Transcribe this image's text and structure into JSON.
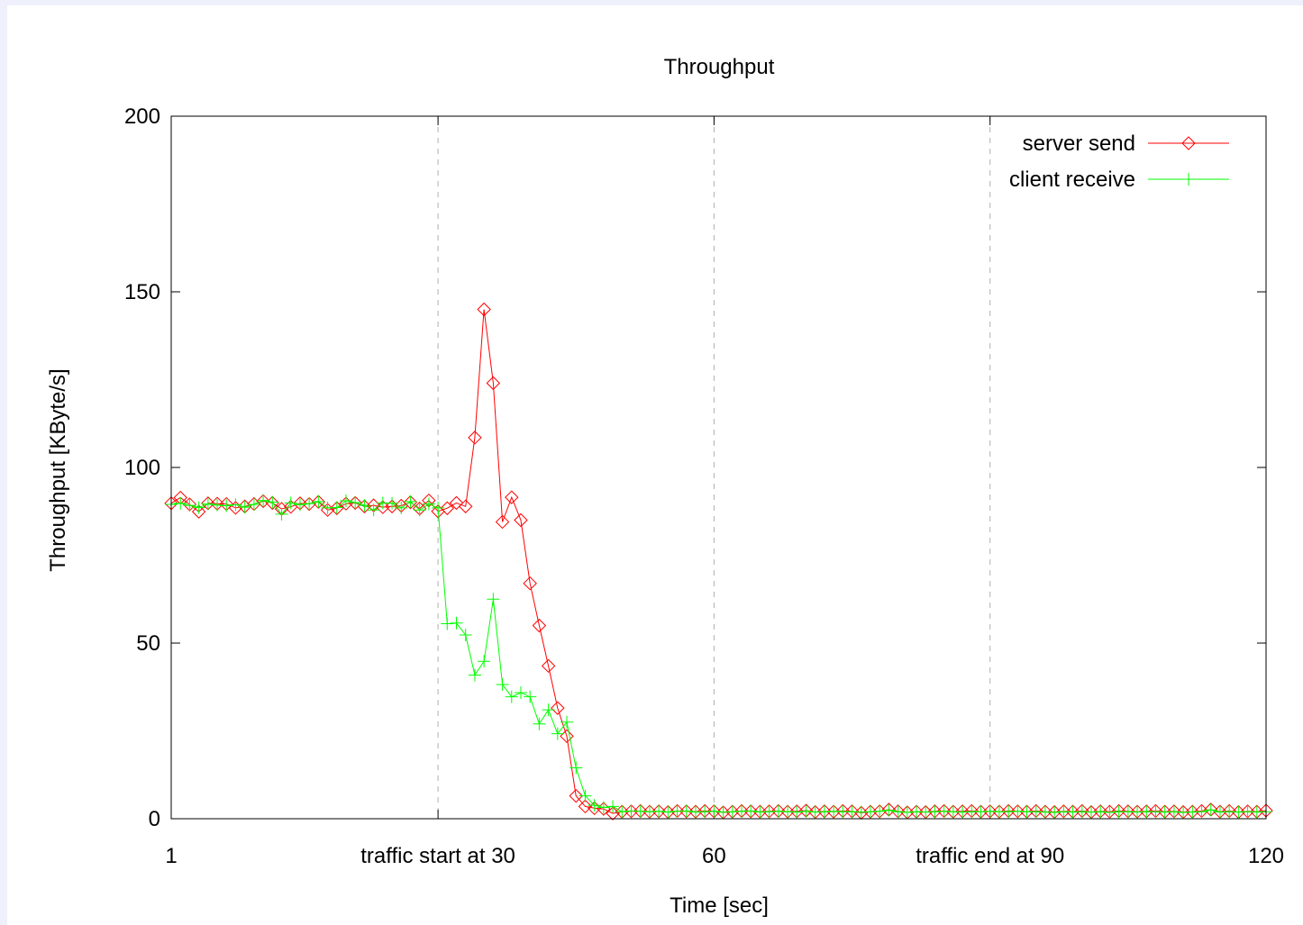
{
  "chart_data": {
    "type": "line",
    "title": "Throughput",
    "xlabel": "Time [sec]",
    "ylabel": "Throughput [KByte/s]",
    "xlim": [
      1,
      120
    ],
    "ylim": [
      0,
      200
    ],
    "x_ticks": [
      {
        "value": 1,
        "label": "1"
      },
      {
        "value": 30,
        "label": "traffic start at 30"
      },
      {
        "value": 60,
        "label": "60"
      },
      {
        "value": 90,
        "label": "traffic end at 90"
      },
      {
        "value": 120,
        "label": "120"
      }
    ],
    "y_ticks": [
      0,
      50,
      100,
      150,
      200
    ],
    "vertical_gridlines_at": [
      30,
      60,
      90
    ],
    "legend_position": "top-right",
    "series": [
      {
        "name": "server send",
        "color": "#ff0000",
        "marker": "diamond",
        "x_start": 1,
        "x_step": 1,
        "values": [
          89.8,
          91.4,
          89.5,
          87.4,
          89.8,
          89.7,
          89.6,
          88.5,
          88.9,
          89.6,
          90.4,
          89.9,
          88.2,
          88.8,
          89.8,
          89.6,
          90.2,
          87.9,
          88.4,
          89.7,
          89.9,
          88.9,
          89.2,
          88.7,
          88.9,
          89.1,
          90.1,
          88.3,
          90.6,
          87.5,
          88.4,
          89.9,
          88.9,
          108.5,
          145.0,
          124.0,
          84.5,
          91.5,
          85.0,
          67.0,
          55.0,
          43.5,
          31.5,
          23.5,
          6.5,
          3.5,
          3.0,
          2.8,
          1.5,
          2.0,
          2.1,
          2.2,
          2.0,
          2.1,
          1.9,
          2.2,
          2.1,
          2.0,
          2.2,
          2.1,
          1.8,
          2.0,
          2.2,
          2.1,
          2.0,
          2.1,
          2.2,
          2.0,
          2.1,
          2.3,
          1.9,
          2.1,
          2.0,
          2.2,
          2.1,
          1.7,
          2.0,
          2.1,
          2.6,
          2.1,
          1.8,
          2.0,
          1.9,
          2.1,
          2.2,
          2.0,
          2.1,
          2.2,
          2.0,
          2.1,
          2.0,
          2.2,
          2.1,
          2.0,
          2.2,
          2.0,
          1.9,
          2.1,
          2.0,
          2.2,
          1.9,
          2.1,
          2.0,
          2.2,
          2.1,
          2.0,
          2.1,
          2.2,
          2.0,
          2.1,
          1.9,
          2.0,
          2.2,
          2.6,
          2.0,
          2.2,
          1.9,
          2.1,
          2.0,
          2.3
        ]
      },
      {
        "name": "client receive",
        "color": "#00ff00",
        "marker": "plus",
        "x_start": 1,
        "x_step": 1,
        "values": [
          89.5,
          89.8,
          89.2,
          88.6,
          89.6,
          89.3,
          89.1,
          89.4,
          88.7,
          89.5,
          90.6,
          90.1,
          86.7,
          89.9,
          89.4,
          89.7,
          90.3,
          88.5,
          88.6,
          90.5,
          90.0,
          89.2,
          87.9,
          89.9,
          89.8,
          88.5,
          90.3,
          87.9,
          89.6,
          88.5,
          55.5,
          55.7,
          52.3,
          40.9,
          44.8,
          62.5,
          38.2,
          34.7,
          35.9,
          34.7,
          27.0,
          31.0,
          24.2,
          27.5,
          14.5,
          6.5,
          3.8,
          3.2,
          3.5,
          2.0,
          2.2,
          2.1,
          2.0,
          2.1,
          1.9,
          2.1,
          2.2,
          1.9,
          2.0,
          2.1,
          1.9,
          2.0,
          2.1,
          2.2,
          1.9,
          2.0,
          2.1,
          2.0,
          1.9,
          2.1,
          1.9,
          2.0,
          2.1,
          2.0,
          2.0,
          1.9,
          2.0,
          2.1,
          2.4,
          2.0,
          1.8,
          2.0,
          1.9,
          2.0,
          2.1,
          2.0,
          1.9,
          2.0,
          2.0,
          2.1,
          2.0,
          2.0,
          2.1,
          2.0,
          2.0,
          1.9,
          1.8,
          2.0,
          1.9,
          2.0,
          1.9,
          2.0,
          1.8,
          2.0,
          2.0,
          1.9,
          2.0,
          2.0,
          1.9,
          2.0,
          1.8,
          1.9,
          2.0,
          2.5,
          1.9,
          2.0,
          1.9,
          2.0,
          1.9,
          2.0
        ]
      }
    ]
  }
}
